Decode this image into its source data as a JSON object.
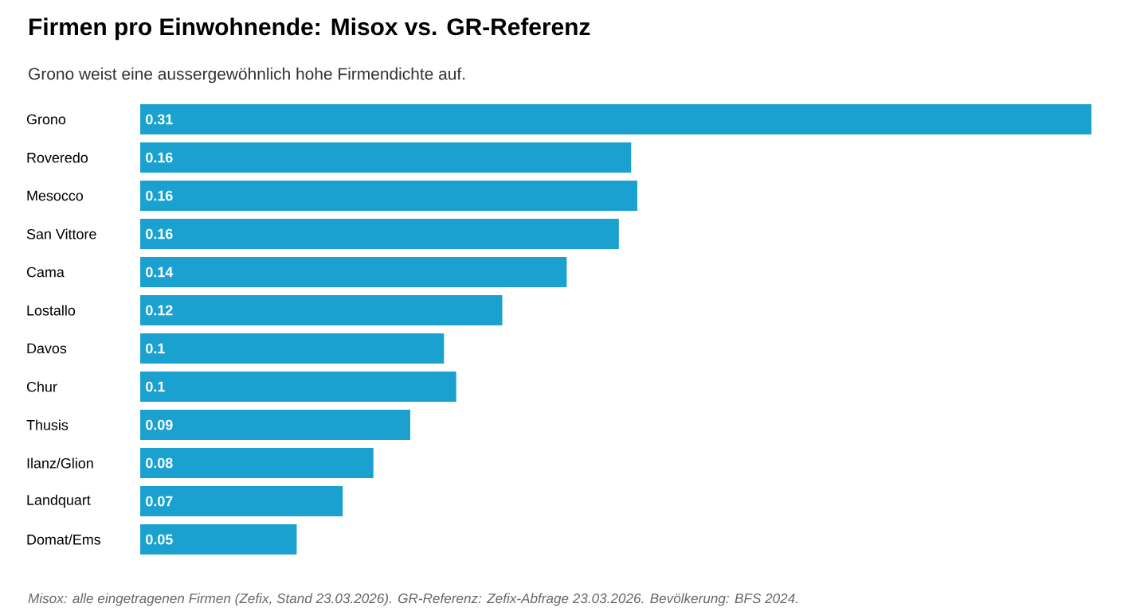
{
  "chart_data": {
    "type": "bar",
    "orientation": "horizontal",
    "title": "Firmen pro Einwohnende: Misox vs. GR-Referenz",
    "subtitle": "Grono weist eine aussergewöhnlich hohe Firmendichte auf.",
    "categories": [
      "Grono",
      "Roveredo",
      "Mesocco",
      "San Vittore",
      "Cama",
      "Lostallo",
      "Davos",
      "Chur",
      "Thusis",
      "Ilanz/Glion",
      "Landquart",
      "Domat/Ems"
    ],
    "values": [
      0.31,
      0.16,
      0.162,
      0.156,
      0.139,
      0.118,
      0.099,
      0.103,
      0.088,
      0.076,
      0.066,
      0.051
    ],
    "value_labels": [
      "0.31",
      "0.16",
      "0.16",
      "0.16",
      "0.14",
      "0.12",
      "0.1",
      "0.1",
      "0.09",
      "0.08",
      "0.07",
      "0.05"
    ],
    "color": "#1ba1d0",
    "annotations": [
      "Misox: alle eingetragenen Firmen (Zefix, Stand 23.03.2026). GR-Referenz: Zefix-Abfrage 23.03.2026. Bevölkerung: BFS 2024."
    ]
  }
}
